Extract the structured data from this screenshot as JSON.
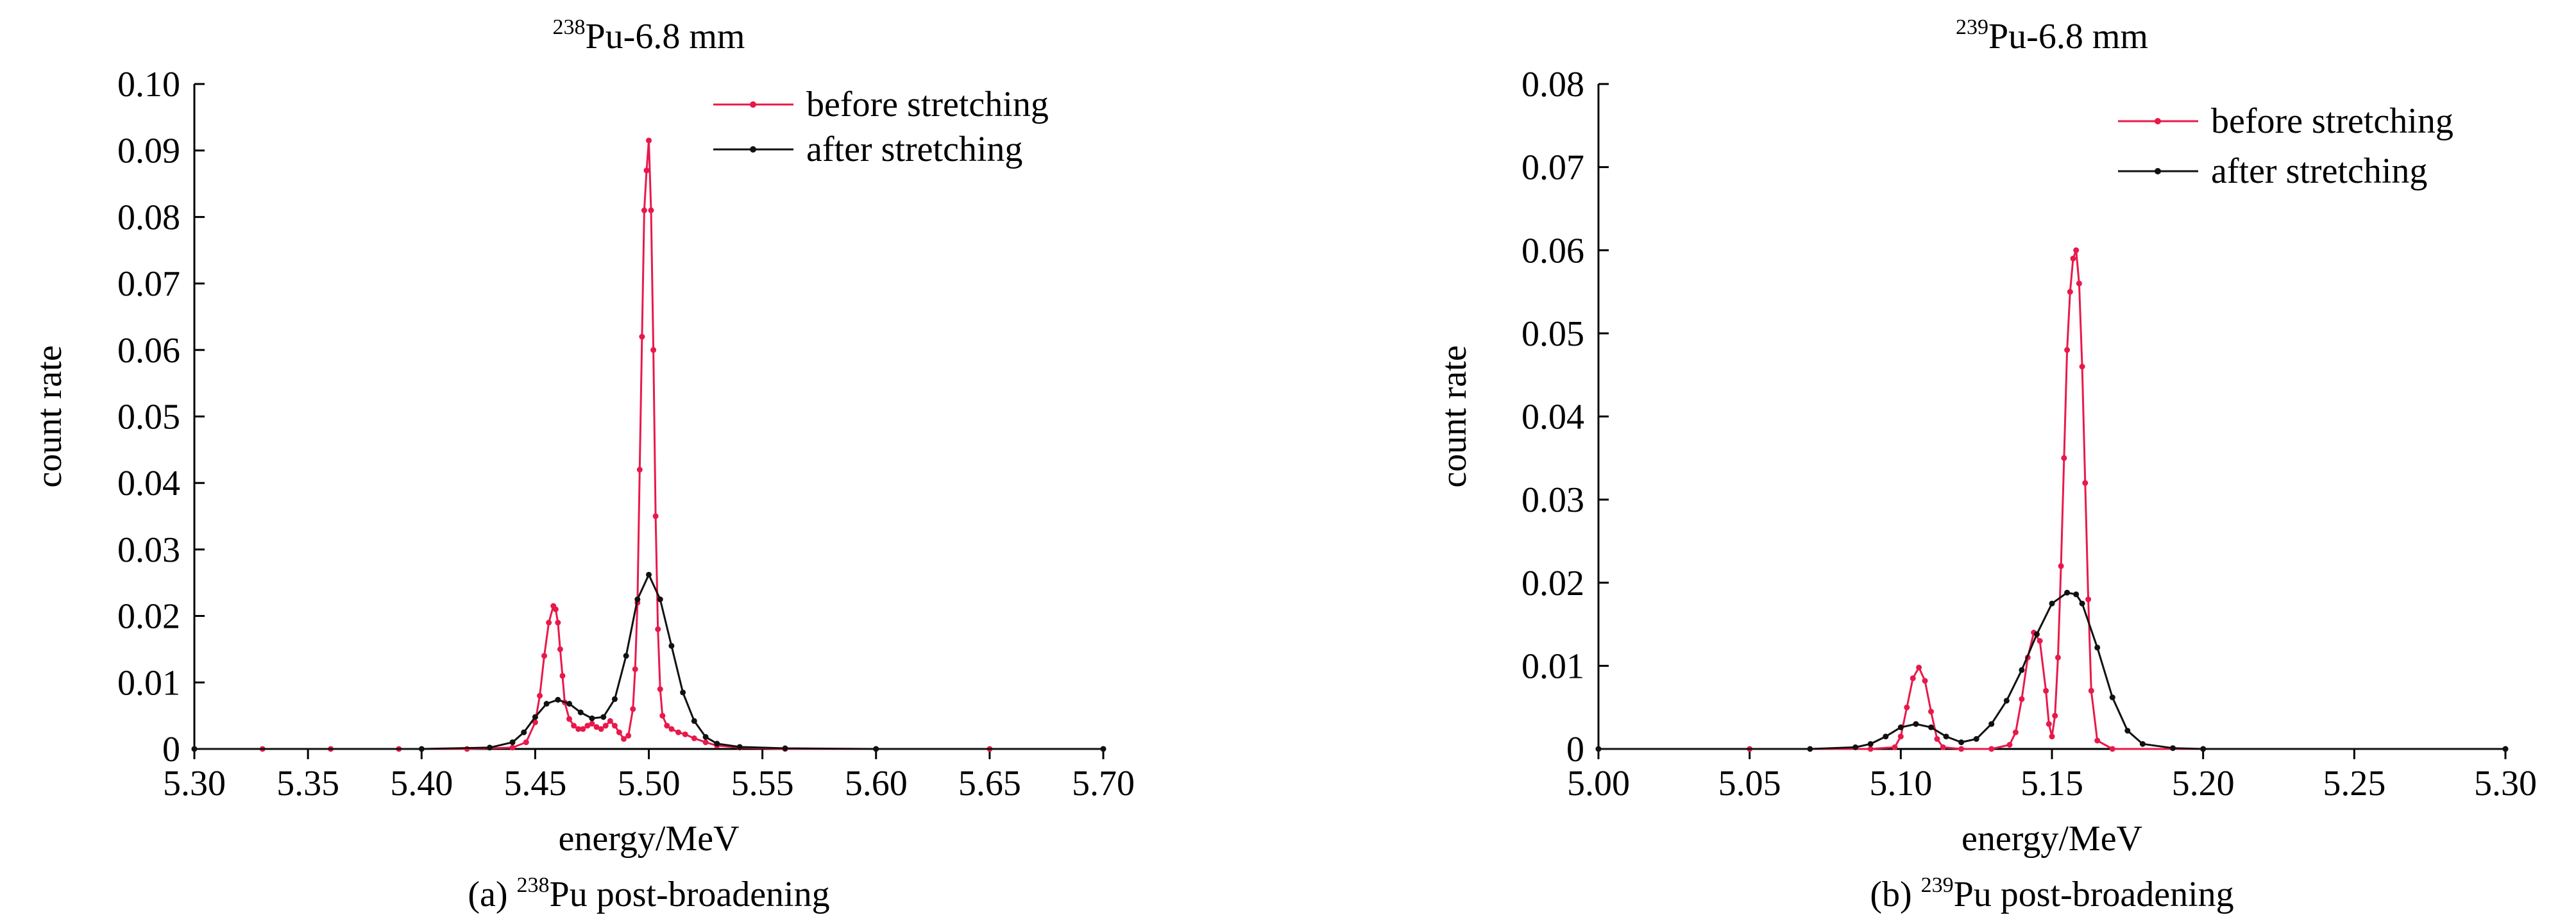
{
  "colors": {
    "before": "#e8194a",
    "after": "#111111",
    "axis": "#000000"
  },
  "chart_data": [
    {
      "type": "line",
      "title_sup": "238",
      "title_main": "Pu-6.8 mm",
      "xlabel": "energy/MeV",
      "ylabel": "count rate",
      "caption_prefix": "(a) ",
      "caption_sup": "238",
      "caption_main": "Pu post-broadening",
      "xlim": [
        5.3,
        5.7
      ],
      "ylim": [
        0,
        0.1
      ],
      "xticks": [
        "5.30",
        "5.35",
        "5.40",
        "5.45",
        "5.50",
        "5.55",
        "5.60",
        "5.65",
        "5.70"
      ],
      "yticks": [
        "0",
        "0.01",
        "0.02",
        "0.03",
        "0.04",
        "0.05",
        "0.06",
        "0.07",
        "0.08",
        "0.09",
        "0.10"
      ],
      "legend_position": "top-right",
      "series": [
        {
          "name": "before stretching",
          "color_key": "before",
          "x": [
            5.3,
            5.33,
            5.36,
            5.39,
            5.42,
            5.44,
            5.446,
            5.45,
            5.452,
            5.454,
            5.456,
            5.458,
            5.459,
            5.46,
            5.461,
            5.462,
            5.463,
            5.465,
            5.467,
            5.469,
            5.471,
            5.473,
            5.475,
            5.477,
            5.479,
            5.481,
            5.483,
            5.485,
            5.487,
            5.489,
            5.491,
            5.493,
            5.494,
            5.495,
            5.496,
            5.497,
            5.498,
            5.499,
            5.5,
            5.501,
            5.502,
            5.503,
            5.504,
            5.505,
            5.506,
            5.508,
            5.51,
            5.513,
            5.516,
            5.52,
            5.525,
            5.53,
            5.54,
            5.56,
            5.6,
            5.65,
            5.7
          ],
          "y": [
            0,
            0,
            0,
            0,
            0,
            0.0002,
            0.001,
            0.004,
            0.008,
            0.014,
            0.019,
            0.0215,
            0.021,
            0.019,
            0.015,
            0.011,
            0.007,
            0.0045,
            0.0035,
            0.003,
            0.003,
            0.0035,
            0.0038,
            0.0033,
            0.003,
            0.0035,
            0.0042,
            0.0035,
            0.0025,
            0.0015,
            0.002,
            0.006,
            0.012,
            0.022,
            0.042,
            0.062,
            0.081,
            0.087,
            0.0915,
            0.081,
            0.06,
            0.035,
            0.018,
            0.009,
            0.005,
            0.0035,
            0.003,
            0.0025,
            0.0022,
            0.0016,
            0.001,
            0.0005,
            0.0002,
            0,
            0,
            0,
            0
          ]
        },
        {
          "name": "after stretching",
          "color_key": "after",
          "x": [
            5.3,
            5.4,
            5.43,
            5.44,
            5.445,
            5.45,
            5.455,
            5.46,
            5.465,
            5.47,
            5.475,
            5.48,
            5.485,
            5.49,
            5.495,
            5.5,
            5.505,
            5.51,
            5.515,
            5.52,
            5.525,
            5.53,
            5.54,
            5.56,
            5.6,
            5.7
          ],
          "y": [
            0,
            0,
            0.0002,
            0.001,
            0.0025,
            0.0048,
            0.0068,
            0.0074,
            0.0068,
            0.0055,
            0.0046,
            0.0048,
            0.0075,
            0.014,
            0.0225,
            0.0262,
            0.0225,
            0.0155,
            0.0085,
            0.0042,
            0.0018,
            0.0008,
            0.0003,
            0.0001,
            0,
            0
          ]
        }
      ]
    },
    {
      "type": "line",
      "title_sup": "239",
      "title_main": "Pu-6.8 mm",
      "xlabel": "energy/MeV",
      "ylabel": "count rate",
      "caption_prefix": "(b) ",
      "caption_sup": "239",
      "caption_main": "Pu post-broadening",
      "xlim": [
        5.0,
        5.3
      ],
      "ylim": [
        0,
        0.08
      ],
      "xticks": [
        "5.00",
        "5.05",
        "5.10",
        "5.15",
        "5.20",
        "5.25",
        "5.30"
      ],
      "yticks": [
        "0",
        "0.01",
        "0.02",
        "0.03",
        "0.04",
        "0.05",
        "0.06",
        "0.07",
        "0.08"
      ],
      "legend_position": "top-right",
      "series": [
        {
          "name": "before stretching",
          "color_key": "before",
          "x": [
            5.0,
            5.05,
            5.09,
            5.098,
            5.1,
            5.102,
            5.104,
            5.106,
            5.108,
            5.11,
            5.112,
            5.114,
            5.12,
            5.13,
            5.136,
            5.138,
            5.14,
            5.142,
            5.144,
            5.146,
            5.148,
            5.149,
            5.15,
            5.151,
            5.152,
            5.153,
            5.154,
            5.155,
            5.156,
            5.157,
            5.158,
            5.159,
            5.16,
            5.161,
            5.162,
            5.163,
            5.165,
            5.17,
            5.2,
            5.3
          ],
          "y": [
            0,
            0,
            0,
            0.0002,
            0.0015,
            0.005,
            0.0085,
            0.0098,
            0.0082,
            0.0045,
            0.0012,
            0.0002,
            0,
            0,
            0.0005,
            0.002,
            0.006,
            0.011,
            0.014,
            0.013,
            0.007,
            0.003,
            0.0015,
            0.004,
            0.011,
            0.022,
            0.035,
            0.048,
            0.055,
            0.059,
            0.06,
            0.056,
            0.046,
            0.032,
            0.018,
            0.007,
            0.001,
            0,
            0,
            0
          ]
        },
        {
          "name": "after stretching",
          "color_key": "after",
          "x": [
            5.0,
            5.07,
            5.085,
            5.09,
            5.095,
            5.1,
            5.105,
            5.11,
            5.115,
            5.12,
            5.125,
            5.13,
            5.135,
            5.14,
            5.145,
            5.15,
            5.155,
            5.158,
            5.16,
            5.165,
            5.17,
            5.175,
            5.18,
            5.19,
            5.2,
            5.3
          ],
          "y": [
            0,
            0,
            0.0002,
            0.0006,
            0.0015,
            0.0026,
            0.003,
            0.0026,
            0.0015,
            0.0008,
            0.0012,
            0.003,
            0.0058,
            0.0095,
            0.0138,
            0.0175,
            0.0188,
            0.0186,
            0.0175,
            0.0122,
            0.0062,
            0.0022,
            0.0006,
            0.0001,
            0,
            0
          ]
        }
      ]
    }
  ]
}
